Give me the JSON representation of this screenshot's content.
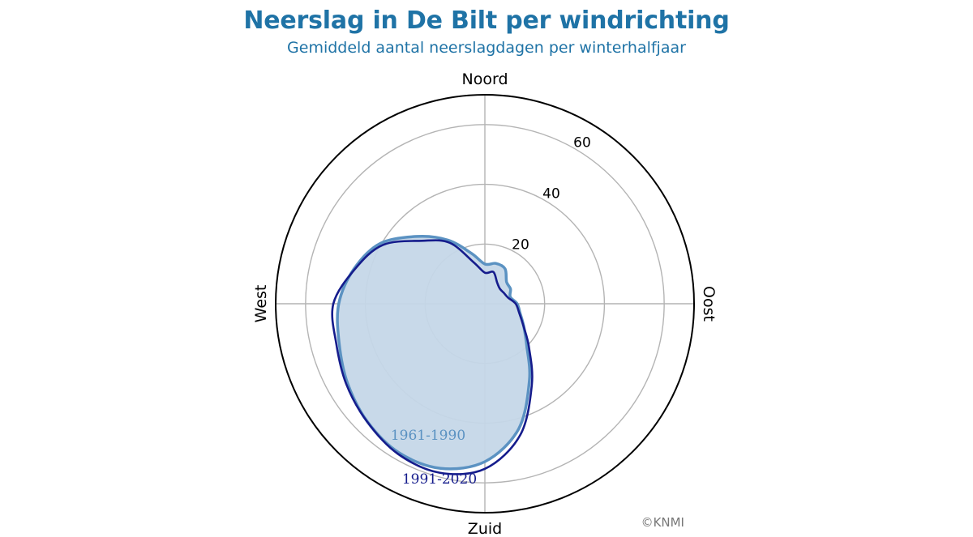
{
  "title": "Neerslag in De Bilt per windrichting",
  "subtitle": "Gemiddeld aantal neerslagdagen per winterhalfjaar",
  "credit": "©KNMI",
  "colors": {
    "title": "#1f73a6",
    "series_1961": "#5b92c2",
    "series_1961_fill": "#c5d7e8",
    "series_1991": "#151c8c",
    "grid": "#b4b4b4",
    "outline": "#000000"
  },
  "chart_data": {
    "type": "polar-area",
    "directions": [
      "Noord",
      "Oost",
      "Zuid",
      "West"
    ],
    "r_ticks": [
      20,
      40,
      60
    ],
    "r_max": 70,
    "grid": true,
    "theta_unit": "degrees clockwise from north",
    "series": [
      {
        "name": "1961-1990",
        "fill": true,
        "theta": [
          0,
          15,
          30,
          45,
          60,
          75,
          90,
          105,
          120,
          135,
          150,
          165,
          180,
          195,
          210,
          225,
          240,
          255,
          270,
          285,
          300,
          315,
          330,
          345,
          360
        ],
        "r": [
          13.3,
          14.0,
          13.5,
          10.3,
          9.9,
          8.8,
          10.8,
          12.2,
          15.0,
          19.8,
          29.8,
          43.5,
          52.9,
          57.1,
          57.6,
          55.7,
          53.1,
          50.5,
          48.9,
          45.3,
          40.4,
          31.9,
          24.6,
          17.5,
          13.3
        ]
      },
      {
        "name": "1991-2020",
        "fill": false,
        "theta": [
          0,
          15,
          30,
          45,
          60,
          75,
          90,
          105,
          120,
          135,
          150,
          165,
          180,
          195,
          210,
          225,
          240,
          255,
          270,
          285,
          300,
          315,
          330,
          345,
          360
        ],
        "r": [
          10.4,
          11.0,
          8.2,
          7.1,
          7.3,
          8.0,
          10.3,
          11.9,
          14.9,
          20.9,
          31.4,
          45.6,
          55.3,
          58.6,
          58.1,
          55.8,
          53.6,
          51.5,
          50.7,
          45.0,
          39.4,
          29.8,
          23.6,
          14.3,
          10.4
        ]
      }
    ]
  }
}
